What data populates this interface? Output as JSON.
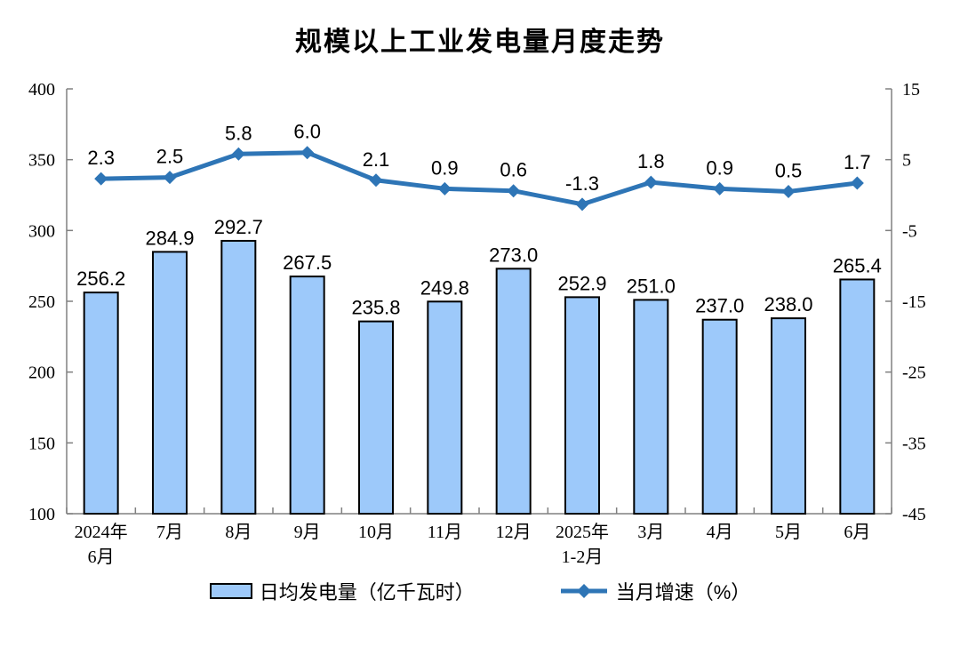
{
  "title": "规模以上工业发电量月度走势",
  "legend": {
    "bar_label": "日均发电量（亿千瓦时）",
    "line_label": "当月增速（%）"
  },
  "chart_data": {
    "type": "bar",
    "subtype": "bar-line-combo",
    "title": "规模以上工业发电量月度走势",
    "categories": [
      [
        "2024年",
        "6月"
      ],
      [
        "7月"
      ],
      [
        "8月"
      ],
      [
        "9月"
      ],
      [
        "10月"
      ],
      [
        "11月"
      ],
      [
        "12月"
      ],
      [
        "2025年",
        "1-2月"
      ],
      [
        "3月"
      ],
      [
        "4月"
      ],
      [
        "5月"
      ],
      [
        "6月"
      ]
    ],
    "series": [
      {
        "name": "日均发电量（亿千瓦时）",
        "type": "bar",
        "axis": "left",
        "values": [
          256.2,
          284.9,
          292.7,
          267.5,
          235.8,
          249.8,
          273.0,
          252.9,
          251.0,
          237.0,
          238.0,
          265.4
        ],
        "labels": [
          "256.2",
          "284.9",
          "292.7",
          "267.5",
          "235.8",
          "249.8",
          "273.0",
          "252.9",
          "251.0",
          "237.0",
          "238.0",
          "265.4"
        ]
      },
      {
        "name": "当月增速（%）",
        "type": "line",
        "axis": "right",
        "values": [
          2.3,
          2.5,
          5.8,
          6.0,
          2.1,
          0.9,
          0.6,
          -1.3,
          1.8,
          0.9,
          0.5,
          1.7
        ],
        "labels": [
          "2.3",
          "2.5",
          "5.8",
          "6.0",
          "2.1",
          "0.9",
          "0.6",
          "-1.3",
          "1.8",
          "0.9",
          "0.5",
          "1.7"
        ]
      }
    ],
    "left_axis": {
      "min": 100,
      "max": 400,
      "ticks": [
        400,
        350,
        300,
        250,
        200,
        150,
        100
      ]
    },
    "right_axis": {
      "min": -45,
      "max": 15,
      "ticks": [
        15,
        5,
        -5,
        -15,
        -25,
        -35,
        -45
      ]
    },
    "grid": false,
    "legend_position": "bottom",
    "colors": {
      "bar_fill": "#9DC9FA",
      "bar_border": "#000000",
      "line": "#2E75B6",
      "axis": "#808080",
      "text": "#000000"
    }
  }
}
